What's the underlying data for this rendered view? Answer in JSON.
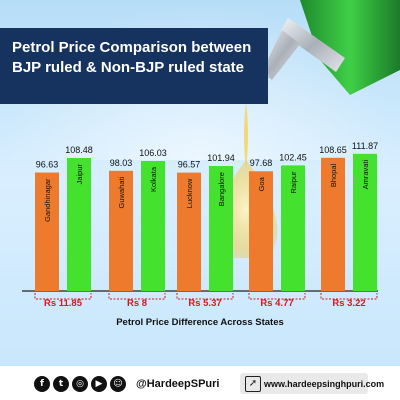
{
  "header": {
    "title": "Petrol Price Comparison between BJP ruled & Non-BJP ruled state"
  },
  "colors": {
    "bjp_bar": "#ee7b2d",
    "non_bjp_bar": "#44e12f",
    "difference_text": "#d6191c",
    "title_background": "#15335e"
  },
  "chart_data": {
    "type": "bar",
    "ylim": [
      0,
      115
    ],
    "xlabel": "Petrol Price Difference Across States",
    "groups": [
      {
        "bars": [
          {
            "label": "Gandhinagar",
            "value": 96.63,
            "kind": "orange"
          },
          {
            "label": "Jaipur",
            "value": 108.48,
            "kind": "green"
          }
        ],
        "difference": "Rs 11.85"
      },
      {
        "bars": [
          {
            "label": "Guwahati",
            "value": 98.03,
            "kind": "orange"
          },
          {
            "label": "Kolkata",
            "value": 106.03,
            "kind": "green"
          }
        ],
        "difference": "Rs 8"
      },
      {
        "bars": [
          {
            "label": "Lucknow",
            "value": 96.57,
            "kind": "orange"
          },
          {
            "label": "Bangalore",
            "value": 101.94,
            "kind": "green"
          }
        ],
        "difference": "Rs 5.37"
      },
      {
        "bars": [
          {
            "label": "Goa",
            "value": 97.68,
            "kind": "orange"
          },
          {
            "label": "Raipur",
            "value": 102.45,
            "kind": "green"
          }
        ],
        "difference": "Rs 4.77"
      },
      {
        "bars": [
          {
            "label": "Bhopal",
            "value": 108.65,
            "kind": "orange"
          },
          {
            "label": "Amravati",
            "value": 111.87,
            "kind": "green"
          }
        ],
        "difference": "Rs 3.22"
      }
    ]
  },
  "footer": {
    "social_icons": [
      "facebook-icon",
      "twitter-icon",
      "instagram-icon",
      "youtube-icon",
      "snapchat-icon"
    ],
    "handle": "@HardeepSPuri",
    "website": "www.hardeepsinghpuri.com"
  }
}
